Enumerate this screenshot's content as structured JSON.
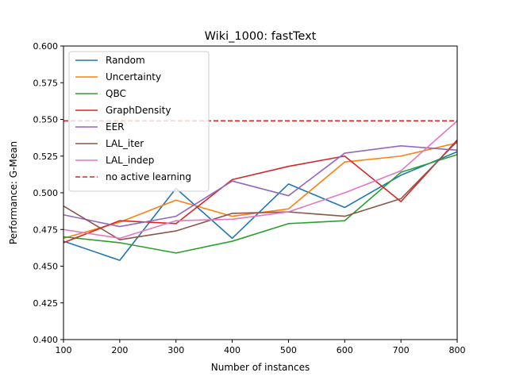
{
  "chart_data": {
    "type": "line",
    "title": "Wiki_1000: fastText",
    "xlabel": "Number of instances",
    "ylabel": "Performance: G-Mean",
    "xlim": [
      100,
      800
    ],
    "ylim": [
      0.4,
      0.6
    ],
    "xticks": [
      "100",
      "200",
      "300",
      "400",
      "500",
      "600",
      "700",
      "800"
    ],
    "yticks": [
      "0.400",
      "0.425",
      "0.450",
      "0.475",
      "0.500",
      "0.525",
      "0.550",
      "0.575",
      "0.600"
    ],
    "grid": false,
    "legend_position": "top-left",
    "x": [
      100,
      200,
      300,
      400,
      500,
      600,
      700,
      800
    ],
    "series": [
      {
        "name": "Random",
        "color": "#1f77b4",
        "style": "solid",
        "values": [
          0.467,
          0.454,
          0.503,
          0.469,
          0.506,
          0.49,
          0.512,
          0.528
        ]
      },
      {
        "name": "Uncertainty",
        "color": "#ff7f0e",
        "style": "solid",
        "values": [
          0.469,
          0.48,
          0.495,
          0.484,
          0.489,
          0.521,
          0.525,
          0.534
        ]
      },
      {
        "name": "QBC",
        "color": "#2ca02c",
        "style": "solid",
        "values": [
          0.47,
          0.466,
          0.459,
          0.467,
          0.479,
          0.481,
          0.514,
          0.526
        ]
      },
      {
        "name": "GraphDensity",
        "color": "#d62728",
        "style": "solid",
        "values": [
          0.466,
          0.481,
          0.479,
          0.509,
          0.518,
          0.525,
          0.494,
          0.536
        ]
      },
      {
        "name": "EER",
        "color": "#9467bd",
        "style": "solid",
        "values": [
          0.485,
          0.477,
          0.484,
          0.508,
          0.498,
          0.527,
          0.532,
          0.529
        ]
      },
      {
        "name": "LAL_iter",
        "color": "#8c564b",
        "style": "solid",
        "values": [
          0.491,
          0.468,
          0.474,
          0.486,
          0.487,
          0.484,
          0.496,
          0.535
        ]
      },
      {
        "name": "LAL_indep",
        "color": "#e377c2",
        "style": "solid",
        "values": [
          0.475,
          0.469,
          0.481,
          0.482,
          0.487,
          0.5,
          0.515,
          0.549
        ]
      },
      {
        "name": "no active learning",
        "color": "#d62728",
        "style": "dashed",
        "values": [
          0.549,
          0.549,
          0.549,
          0.549,
          0.549,
          0.549,
          0.549,
          0.549
        ]
      }
    ]
  }
}
